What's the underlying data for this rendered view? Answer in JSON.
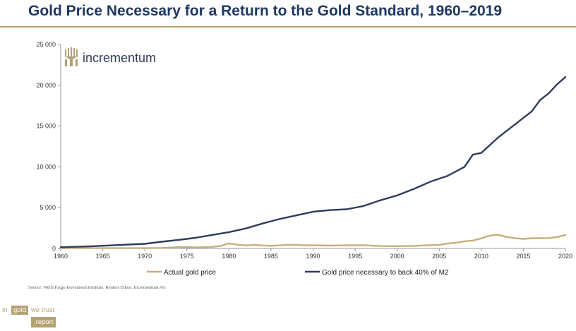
{
  "title": "Gold Price Necessary for a Return to the Gold Standard, 1960–2019",
  "logo_text": "incrementum",
  "source": "Source: Wells Fargo Investment Institute, Reuters Eikon, Incrementum AG",
  "branding": {
    "in": "in",
    "gold": "gold",
    "we_trust": "we trust",
    "report": ".report"
  },
  "colors": {
    "m2_line": "#2f3c5c",
    "gold_line": "#c4b07a",
    "accent": "#b3a271",
    "title": "#1f3864"
  },
  "chart_data": {
    "type": "line",
    "title": "Gold Price Necessary for a Return to the Gold Standard, 1960–2019",
    "xlabel": "",
    "ylabel": "",
    "xlim": [
      1960,
      2020
    ],
    "ylim": [
      0,
      25000
    ],
    "xticks": [
      1960,
      1965,
      1970,
      1975,
      1980,
      1985,
      1990,
      1995,
      2000,
      2005,
      2010,
      2015,
      2020
    ],
    "yticks": [
      0,
      5000,
      10000,
      15000,
      20000,
      25000
    ],
    "ytick_labels": [
      "0",
      "5 000",
      "10 000",
      "15 000",
      "20 000",
      "25 000"
    ],
    "legend_position": "bottom",
    "grid": false,
    "series": [
      {
        "name": "Actual gold price",
        "color": "#c4b07a",
        "x": [
          1960,
          1965,
          1970,
          1972,
          1974,
          1975,
          1976,
          1977,
          1978,
          1979,
          1980,
          1981,
          1982,
          1983,
          1984,
          1985,
          1986,
          1987,
          1988,
          1989,
          1990,
          1992,
          1994,
          1996,
          1998,
          2000,
          2002,
          2004,
          2005,
          2006,
          2007,
          2008,
          2009,
          2010,
          2011,
          2012,
          2013,
          2014,
          2015,
          2016,
          2017,
          2018,
          2019,
          2020
        ],
        "values": [
          35,
          35,
          36,
          58,
          154,
          161,
          125,
          148,
          193,
          307,
          612,
          460,
          376,
          424,
          361,
          317,
          368,
          447,
          437,
          381,
          383,
          344,
          384,
          388,
          294,
          279,
          310,
          409,
          444,
          603,
          695,
          872,
          972,
          1225,
          1572,
          1669,
          1411,
          1266,
          1160,
          1251,
          1257,
          1268,
          1393,
          1650
        ]
      },
      {
        "name": "Gold price necessary to back 40% of M2",
        "color": "#2f3c5c",
        "x": [
          1960,
          1962,
          1964,
          1966,
          1968,
          1970,
          1972,
          1974,
          1976,
          1978,
          1980,
          1982,
          1984,
          1986,
          1988,
          1990,
          1992,
          1994,
          1996,
          1998,
          2000,
          2002,
          2004,
          2006,
          2008,
          2009,
          2010,
          2012,
          2014,
          2016,
          2017,
          2018,
          2019,
          2020
        ],
        "values": [
          150,
          210,
          280,
          370,
          480,
          560,
          820,
          1050,
          1300,
          1650,
          2000,
          2450,
          3050,
          3600,
          4050,
          4500,
          4700,
          4800,
          5200,
          5900,
          6500,
          7300,
          8200,
          8900,
          10000,
          11500,
          11700,
          13600,
          15200,
          16800,
          18200,
          19000,
          20100,
          21000
        ]
      }
    ]
  }
}
